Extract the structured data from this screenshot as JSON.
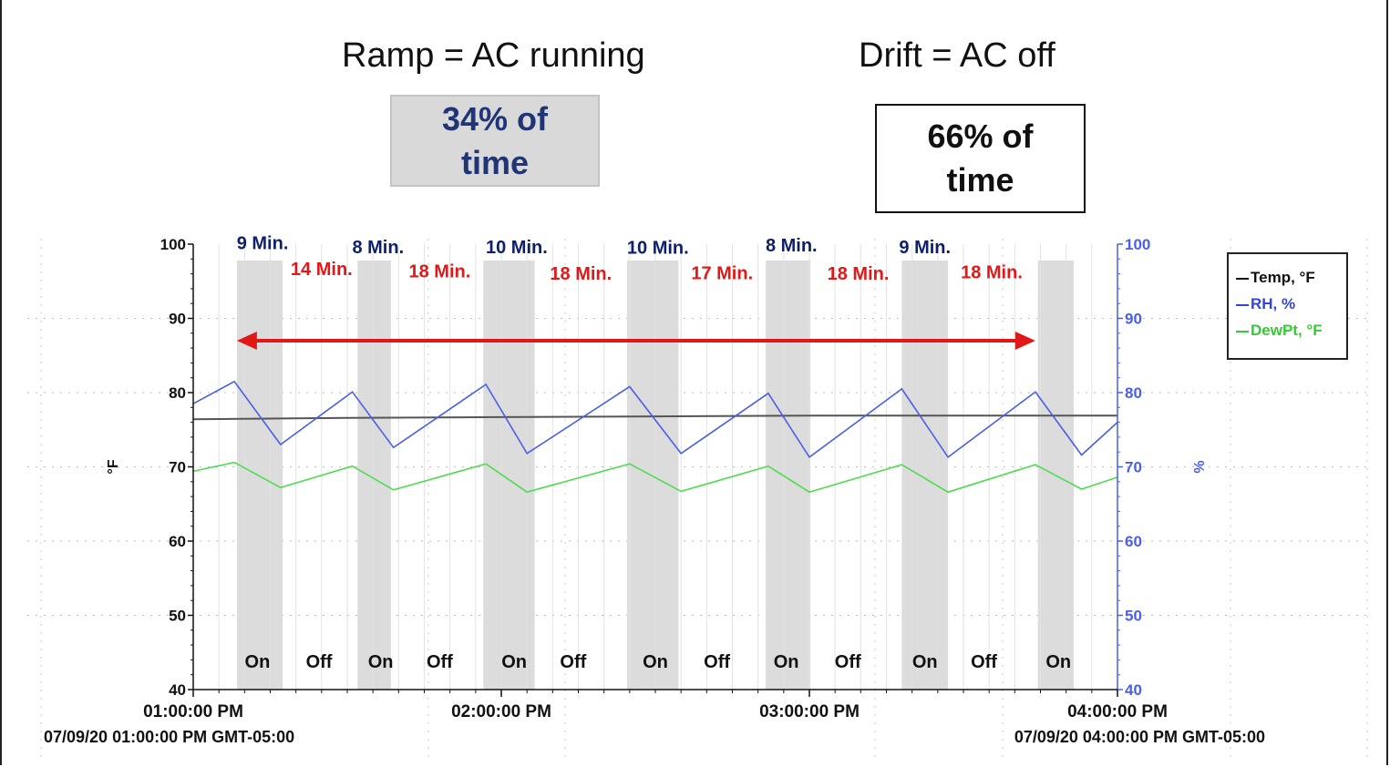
{
  "colors": {
    "temp": "#555555",
    "rh": "#4a5ee8",
    "dew": "#4ddc4d",
    "cycle_min": "#0e1f6b",
    "drift_min": "#e01818",
    "arrow": "#e01818",
    "shade": "#dcdcdc",
    "ramp_box_bg": "#d9d9d9",
    "ramp_box_text": "#1f3576"
  },
  "headers": {
    "ramp": "Ramp = AC running",
    "drift": "Drift = AC off"
  },
  "ramp_box": {
    "line1": "34% of",
    "line2": "time"
  },
  "drift_box": {
    "line1": "66% of",
    "line2": "time"
  },
  "legend": [
    {
      "label": "Temp, °F",
      "color_key": "temp"
    },
    {
      "label": "RH, %",
      "color_key": "rh"
    },
    {
      "label": "DewPt, °F",
      "color_key": "dew"
    }
  ],
  "chart_data": {
    "type": "line",
    "x_unit": "minutes after 01:00:00 PM",
    "xlim": [
      0,
      180
    ],
    "x_ticks": [
      0,
      60,
      120,
      180
    ],
    "x_tick_labels": [
      "01:00:00 PM",
      "02:00:00 PM",
      "03:00:00 PM",
      "04:00:00 PM"
    ],
    "x_range_start_label": "07/09/20 01:00:00 PM GMT-05:00",
    "x_range_end_label": "07/09/20 04:00:00 PM GMT-05:00",
    "y_left": {
      "label": "°F",
      "lim": [
        40,
        100
      ],
      "ticks": [
        40,
        50,
        60,
        70,
        80,
        90,
        100
      ]
    },
    "y_right": {
      "label": "%",
      "lim": [
        40,
        100
      ],
      "ticks": [
        40,
        50,
        60,
        70,
        80,
        90,
        100
      ]
    },
    "series": [
      {
        "name": "Temp, °F",
        "axis": "left",
        "color_key": "temp",
        "x": [
          0,
          30,
          60,
          90,
          120,
          150,
          180
        ],
        "y": [
          76.4,
          76.6,
          76.7,
          76.8,
          76.9,
          76.9,
          76.9
        ]
      },
      {
        "name": "RH, %",
        "axis": "right",
        "color_key": "rh",
        "x": [
          0,
          8,
          17,
          31,
          39,
          57,
          65,
          85,
          95,
          112,
          120,
          138,
          147,
          164,
          173,
          180
        ],
        "y": [
          78.5,
          81.5,
          73,
          80.1,
          72.6,
          81.1,
          71.8,
          80.8,
          71.8,
          79.9,
          71.3,
          80.5,
          71.3,
          80.1,
          71.6,
          76
        ]
      },
      {
        "name": "DewPt, °F",
        "axis": "left",
        "color_key": "dew",
        "x": [
          0,
          8,
          17,
          31,
          39,
          57,
          65,
          85,
          95,
          112,
          120,
          138,
          147,
          164,
          173,
          180
        ],
        "y": [
          69.4,
          70.6,
          67.2,
          70.1,
          66.9,
          70.4,
          66.6,
          70.4,
          66.7,
          70.1,
          66.6,
          70.3,
          66.6,
          70.3,
          67,
          68.6
        ]
      }
    ],
    "shaded_on_periods": [
      [
        8.5,
        17.4
      ],
      [
        32,
        38.5
      ],
      [
        56.5,
        66.5
      ],
      [
        84.5,
        94.5
      ],
      [
        111.5,
        120.2
      ],
      [
        138,
        147
      ],
      [
        164.5,
        171.5
      ]
    ],
    "period_labels": [
      {
        "text": "On",
        "x": 12.5
      },
      {
        "text": "Off",
        "x": 24.5
      },
      {
        "text": "On",
        "x": 36.5
      },
      {
        "text": "Off",
        "x": 48
      },
      {
        "text": "On",
        "x": 62.5
      },
      {
        "text": "Off",
        "x": 74
      },
      {
        "text": "On",
        "x": 90
      },
      {
        "text": "Off",
        "x": 102
      },
      {
        "text": "On",
        "x": 115.5
      },
      {
        "text": "Off",
        "x": 127.5
      },
      {
        "text": "On",
        "x": 142.5
      },
      {
        "text": "Off",
        "x": 154
      },
      {
        "text": "On",
        "x": 168.5
      }
    ],
    "cycle_annotations": [
      {
        "text": "9 Min.",
        "x": 13.5,
        "y": 99.3
      },
      {
        "text": "8 Min.",
        "x": 36,
        "y": 98.8
      },
      {
        "text": "10 Min.",
        "x": 63,
        "y": 98.8
      },
      {
        "text": "10 Min.",
        "x": 90.5,
        "y": 98.7
      },
      {
        "text": "8 Min.",
        "x": 116.5,
        "y": 99
      },
      {
        "text": "9 Min.",
        "x": 142.5,
        "y": 98.8
      }
    ],
    "drift_annotations": [
      {
        "text": "14 Min.",
        "x": 25,
        "y": 95.8
      },
      {
        "text": "18 Min.",
        "x": 48,
        "y": 95.5
      },
      {
        "text": "18 Min.",
        "x": 75.5,
        "y": 95.2
      },
      {
        "text": "17 Min.",
        "x": 103,
        "y": 95.3
      },
      {
        "text": "18 Min.",
        "x": 129.5,
        "y": 95.2
      },
      {
        "text": "18 Min.",
        "x": 155.5,
        "y": 95.4
      }
    ],
    "arrow": {
      "x_start": 8.5,
      "x_end": 164,
      "y": 87
    },
    "grid": "dotted"
  }
}
